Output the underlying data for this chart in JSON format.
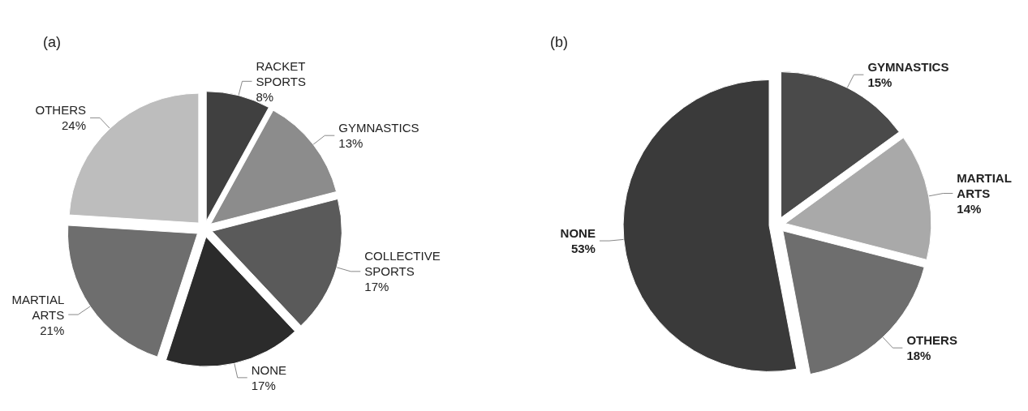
{
  "chart_data": [
    {
      "type": "pie",
      "title": "(a)",
      "categories": [
        "RACKET SPORTS",
        "GYMNASTICS",
        "COLLECTIVE SPORTS",
        "NONE",
        "MARTIAL ARTS",
        "OTHERS"
      ],
      "values": [
        8,
        13,
        17,
        17,
        21,
        24
      ],
      "colors": [
        "#404040",
        "#8c8c8c",
        "#5a5a5a",
        "#2b2b2b",
        "#6e6e6e",
        "#bdbdbd"
      ],
      "value_labels": [
        "8%",
        "13%",
        "17%",
        "17%",
        "21%",
        "24%"
      ],
      "legend": false
    },
    {
      "type": "pie",
      "title": "(b)",
      "categories": [
        "GYMNASTICS",
        "MARTIAL ARTS",
        "OTHERS",
        "NONE"
      ],
      "values": [
        15,
        14,
        18,
        53
      ],
      "colors": [
        "#4a4a4a",
        "#a9a9a9",
        "#6e6e6e",
        "#3a3a3a"
      ],
      "value_labels": [
        "15%",
        "14%",
        "18%",
        "53%"
      ],
      "legend": false
    }
  ]
}
